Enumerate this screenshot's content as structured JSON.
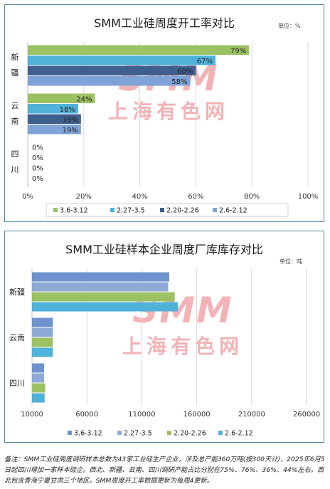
{
  "charts": [
    {
      "title": "SMM工业硅周度开工率对比",
      "unit": "单位：%",
      "watermark": {
        "brand": "SMM",
        "text": "上海有色网"
      },
      "chart_data": {
        "type": "bar",
        "orientation": "horizontal",
        "categories": [
          "新疆",
          "云南",
          "四川"
        ],
        "category_labels": [
          [
            "新",
            "疆"
          ],
          [
            "云",
            "南"
          ],
          [
            "四",
            "川"
          ]
        ],
        "series": [
          {
            "name": "3.6-3.12",
            "color": "#9cc162",
            "values": [
              79,
              24,
              0
            ],
            "labels": [
              "79%",
              "24%",
              "0%"
            ]
          },
          {
            "name": "2.27-3.5",
            "color": "#4fb2d9",
            "values": [
              67,
              18,
              0
            ],
            "labels": [
              "67%",
              "18%",
              "0%"
            ]
          },
          {
            "name": "2.20-2.26",
            "color": "#3f5f8f",
            "values": [
              60,
              19,
              0
            ],
            "labels": [
              "60%",
              "19%",
              "0%"
            ]
          },
          {
            "name": "2.6-2.12",
            "color": "#7fa3d8",
            "values": [
              58,
              19,
              0
            ],
            "labels": [
              "58%",
              "19%",
              "0%"
            ]
          }
        ],
        "xlim": [
          0,
          100
        ],
        "xticks": [
          "0%",
          "20%",
          "40%",
          "60%",
          "80%",
          "100%"
        ],
        "grid": true,
        "legend": "bottom"
      }
    },
    {
      "title": "SMM工业硅样本企业周度厂库库存对比",
      "unit": "单位：吨",
      "watermark": {
        "brand": "SMM",
        "text": "上海有色网"
      },
      "chart_data": {
        "type": "bar",
        "orientation": "horizontal",
        "categories": [
          "新疆",
          "云南",
          "四川"
        ],
        "series": [
          {
            "name": "3.6-3.12",
            "color": "#6e93cc",
            "values": [
              135000,
              29000,
              21000
            ]
          },
          {
            "name": "2.27-3.5",
            "color": "#8da9d6",
            "values": [
              134000,
              29000,
              21000
            ]
          },
          {
            "name": "2.20-2.26",
            "color": "#9cc162",
            "values": [
              140000,
              29000,
              22000
            ]
          },
          {
            "name": "2.6-2.12",
            "color": "#4fb2d9",
            "values": [
              143000,
              29000,
              21500
            ]
          }
        ],
        "xlim": [
          10000,
          260000
        ],
        "xticks": [
          "10000",
          "60000",
          "110000",
          "160000",
          "210000",
          "260000"
        ],
        "grid": true,
        "legend": "bottom"
      }
    }
  ],
  "footnote": "备注：SMM工业硅周度调研样本总数为43家工业硅生产企业，涉及总产能360万吨(按300天计)，2025年6月5日起四川增加一家样本硅企。西北、新疆、云南、四川调研产能占比分别在75%、76%、36%、44%左右。西北包含青海宁夏甘肃三个地区。SMM周度开工率数据更新为每周4更新。"
}
